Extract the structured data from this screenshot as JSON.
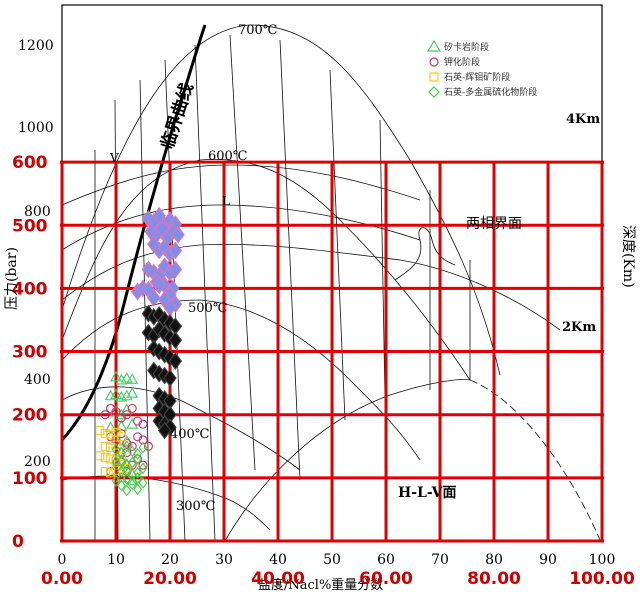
{
  "chart_data": {
    "type": "scatter",
    "xlabel": "盐度/Nacl%重量分数",
    "ylabel_left": "压力(bar)",
    "ylabel_right": "深度(Km)",
    "xlim": [
      0,
      100
    ],
    "x_ticks_red": [
      "0.00",
      "20.00",
      "40.00",
      "60.00",
      "80.00",
      "100.00"
    ],
    "x_ticks_black": [
      "0",
      "10",
      "20",
      "30",
      "40",
      "50",
      "60",
      "70",
      "80",
      "90",
      "100"
    ],
    "y_ticks_red": [
      "0",
      "100",
      "200",
      "300",
      "400",
      "500",
      "600"
    ],
    "y_ticks_black": [
      "200",
      "400",
      "800",
      "1000",
      "1200"
    ],
    "depth_labels": [
      "4Km",
      "2Km"
    ],
    "isotherm_labels": [
      "700℃",
      "600℃",
      "500℃",
      "400℃",
      "300℃"
    ],
    "annotations": {
      "critical_curve": "临界曲线",
      "two_phase_boundary": "两相界面",
      "hlv_surface": "H-L-V面",
      "vapor": "V",
      "liquid": "L"
    },
    "legend": [
      {
        "name": "矽卡岩阶段",
        "marker": "triangle",
        "color": "#44cc66"
      },
      {
        "name": "钾化阶段",
        "marker": "circle",
        "color": "#cc3366"
      },
      {
        "name": "石英-辉钼矿阶段",
        "marker": "square",
        "color": "#eecc22"
      },
      {
        "name": "石英-多金属硫化物阶段",
        "marker": "diamond",
        "color": "#44cc44"
      }
    ],
    "series": [
      {
        "name": "矽卡岩阶段",
        "marker": "triangle",
        "x": [
          10,
          11,
          12,
          13,
          9,
          10,
          11,
          12,
          13,
          10,
          11,
          12,
          9,
          11,
          13,
          10,
          12,
          11,
          10,
          12,
          11,
          13
        ],
        "y": [
          260,
          255,
          258,
          256,
          230,
          232,
          228,
          230,
          234,
          205,
          200,
          208,
          180,
          182,
          185,
          160,
          158,
          140,
          120,
          122,
          100,
          96
        ]
      },
      {
        "name": "钾化阶段",
        "marker": "circle",
        "x": [
          8,
          9,
          10,
          11,
          12,
          13,
          14,
          15,
          9,
          10,
          11,
          12,
          13,
          14,
          15,
          16,
          10,
          11,
          12,
          13,
          14,
          9,
          12,
          15
        ],
        "y": [
          200,
          210,
          205,
          195,
          200,
          210,
          190,
          185,
          165,
          160,
          170,
          155,
          150,
          165,
          160,
          150,
          130,
          125,
          140,
          120,
          130,
          110,
          110,
          120
        ]
      },
      {
        "name": "石英-辉钼矿阶段",
        "marker": "square",
        "x": [
          7,
          8,
          9,
          10,
          11,
          8,
          9,
          10,
          7,
          8,
          9,
          10,
          11,
          8,
          9,
          10,
          12
        ],
        "y": [
          175,
          170,
          168,
          172,
          165,
          150,
          148,
          152,
          135,
          132,
          130,
          128,
          134,
          110,
          108,
          112,
          115
        ]
      },
      {
        "name": "石英-多金属硫化物阶段",
        "marker": "diamond",
        "x": [
          10,
          11,
          12,
          13,
          14,
          15,
          10,
          11,
          12,
          13,
          14,
          11,
          12,
          13,
          14,
          15,
          10,
          12,
          14,
          11,
          13,
          15,
          12,
          14
        ],
        "y": [
          145,
          140,
          150,
          142,
          138,
          148,
          125,
          128,
          120,
          124,
          130,
          110,
          112,
          105,
          108,
          115,
          95,
          98,
          100,
          88,
          90,
          92,
          80,
          82
        ]
      },
      {
        "name": "blue-diamond",
        "marker": "diamond",
        "x": [
          16,
          17,
          18,
          19,
          20,
          21,
          16.5,
          17.5,
          18.5,
          19.5,
          20.5,
          21.5,
          17,
          18,
          19,
          20,
          21,
          16,
          17,
          18,
          19,
          20,
          21,
          17.5,
          19,
          20.5,
          14,
          15,
          16,
          18,
          20,
          17,
          19,
          21,
          20
        ],
        "y": [
          510,
          505,
          515,
          500,
          508,
          502,
          490,
          485,
          495,
          480,
          490,
          485,
          470,
          460,
          465,
          455,
          460,
          430,
          425,
          420,
          435,
          425,
          430,
          410,
          405,
          400,
          395,
          400,
          398,
          405,
          390,
          385,
          382,
          375,
          370
        ]
      },
      {
        "name": "black-diamond",
        "marker": "diamond",
        "x": [
          16,
          17,
          18,
          19,
          20,
          21,
          16,
          17,
          18,
          19,
          20,
          21,
          17,
          18,
          19,
          20,
          21,
          17,
          18,
          19,
          20,
          18,
          19,
          20,
          18,
          19,
          20,
          18,
          19,
          20,
          19
        ],
        "y": [
          360,
          355,
          358,
          350,
          345,
          340,
          330,
          325,
          335,
          328,
          322,
          318,
          305,
          300,
          295,
          290,
          285,
          270,
          265,
          262,
          258,
          230,
          225,
          222,
          210,
          205,
          200,
          190,
          185,
          180,
          175
        ]
      }
    ]
  }
}
